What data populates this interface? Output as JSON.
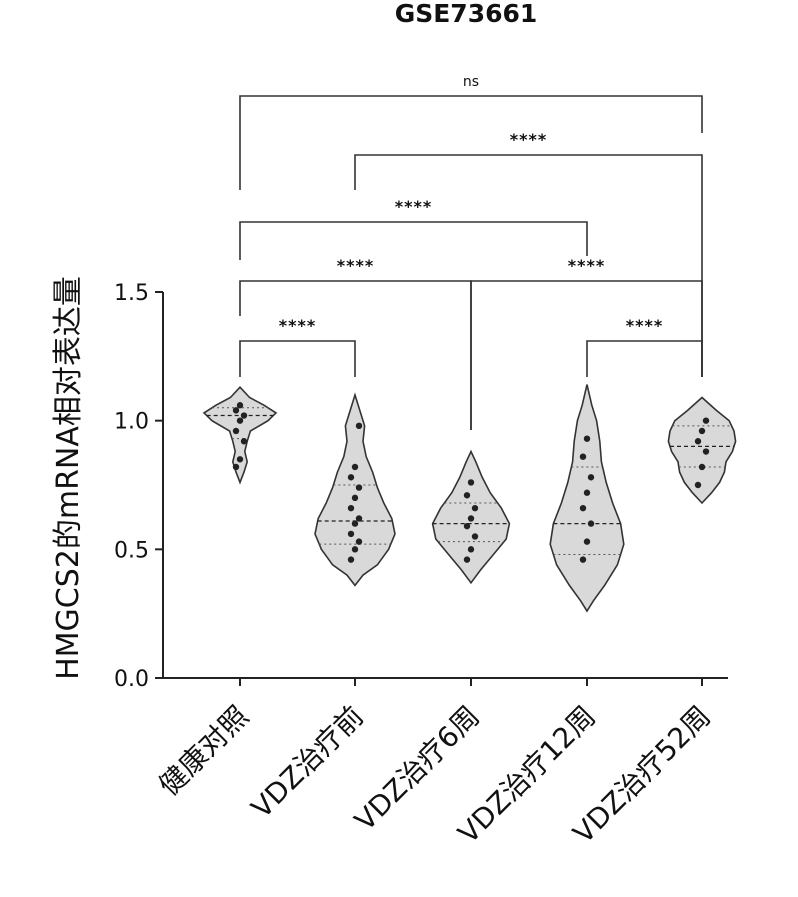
{
  "chart_data": {
    "type": "violin",
    "title": "GSE73661",
    "ylabel": "HMGCS2的mRNA相对表达量",
    "xlabel": "",
    "ylim": [
      0,
      1.5
    ],
    "yticks": [
      "0.0",
      "0.5",
      "1.0",
      "1.5"
    ],
    "categories": [
      "健康对照",
      "VDZ治疗前",
      "VDZ治疗6周",
      "VDZ治疗12周",
      "VDZ治疗52周"
    ],
    "fill_color": "#d9d9d9",
    "series": [
      {
        "category": "健康对照",
        "min": 0.76,
        "max": 1.13,
        "median": 1.02,
        "q1": 0.93,
        "q3": 1.05,
        "profile": [
          [
            0.76,
            0.0
          ],
          [
            0.8,
            0.05
          ],
          [
            0.84,
            0.09
          ],
          [
            0.88,
            0.06
          ],
          [
            0.92,
            0.09
          ],
          [
            0.96,
            0.13
          ],
          [
            1.0,
            0.35
          ],
          [
            1.03,
            0.45
          ],
          [
            1.06,
            0.3
          ],
          [
            1.09,
            0.12
          ],
          [
            1.13,
            0.0
          ]
        ],
        "points": [
          0.82,
          0.85,
          0.92,
          0.96,
          1.0,
          1.02,
          1.04,
          1.06
        ]
      },
      {
        "category": "VDZ治疗前",
        "min": 0.36,
        "max": 1.1,
        "median": 0.61,
        "q1": 0.52,
        "q3": 0.75,
        "profile": [
          [
            0.36,
            0.0
          ],
          [
            0.4,
            0.1
          ],
          [
            0.44,
            0.28
          ],
          [
            0.5,
            0.42
          ],
          [
            0.56,
            0.5
          ],
          [
            0.62,
            0.46
          ],
          [
            0.68,
            0.36
          ],
          [
            0.74,
            0.28
          ],
          [
            0.8,
            0.22
          ],
          [
            0.86,
            0.14
          ],
          [
            0.92,
            0.1
          ],
          [
            0.98,
            0.12
          ],
          [
            1.04,
            0.06
          ],
          [
            1.1,
            0.0
          ]
        ],
        "points": [
          0.46,
          0.5,
          0.53,
          0.56,
          0.6,
          0.62,
          0.66,
          0.7,
          0.74,
          0.78,
          0.82,
          0.98
        ]
      },
      {
        "category": "VDZ治疗6周",
        "min": 0.37,
        "max": 0.88,
        "median": 0.6,
        "q1": 0.53,
        "q3": 0.68,
        "profile": [
          [
            0.37,
            0.0
          ],
          [
            0.42,
            0.12
          ],
          [
            0.48,
            0.28
          ],
          [
            0.54,
            0.44
          ],
          [
            0.6,
            0.48
          ],
          [
            0.66,
            0.38
          ],
          [
            0.72,
            0.24
          ],
          [
            0.78,
            0.14
          ],
          [
            0.84,
            0.06
          ],
          [
            0.88,
            0.0
          ]
        ],
        "points": [
          0.46,
          0.5,
          0.55,
          0.59,
          0.62,
          0.66,
          0.71,
          0.76
        ]
      },
      {
        "category": "VDZ治疗12周",
        "min": 0.26,
        "max": 1.14,
        "median": 0.6,
        "q1": 0.48,
        "q3": 0.82,
        "profile": [
          [
            0.26,
            0.0
          ],
          [
            0.3,
            0.08
          ],
          [
            0.36,
            0.22
          ],
          [
            0.44,
            0.38
          ],
          [
            0.52,
            0.46
          ],
          [
            0.6,
            0.42
          ],
          [
            0.68,
            0.32
          ],
          [
            0.76,
            0.24
          ],
          [
            0.84,
            0.18
          ],
          [
            0.92,
            0.16
          ],
          [
            1.0,
            0.12
          ],
          [
            1.06,
            0.06
          ],
          [
            1.14,
            0.0
          ]
        ],
        "points": [
          0.46,
          0.53,
          0.6,
          0.66,
          0.72,
          0.78,
          0.86,
          0.93
        ]
      },
      {
        "category": "VDZ治疗52周",
        "min": 0.68,
        "max": 1.09,
        "median": 0.9,
        "q1": 0.82,
        "q3": 0.98,
        "profile": [
          [
            0.68,
            0.0
          ],
          [
            0.72,
            0.12
          ],
          [
            0.76,
            0.22
          ],
          [
            0.8,
            0.28
          ],
          [
            0.84,
            0.3
          ],
          [
            0.88,
            0.38
          ],
          [
            0.92,
            0.42
          ],
          [
            0.96,
            0.4
          ],
          [
            1.0,
            0.34
          ],
          [
            1.04,
            0.18
          ],
          [
            1.09,
            0.0
          ]
        ],
        "points": [
          0.75,
          0.82,
          0.88,
          0.92,
          0.96,
          1.0
        ]
      }
    ],
    "comparisons": [
      {
        "from": "健康对照",
        "to": "VDZ治疗前",
        "label": "****"
      },
      {
        "from": "VDZ治疗前",
        "to": "VDZ治疗52周",
        "label": "****"
      },
      {
        "from": "健康对照",
        "to": "VDZ治疗6周",
        "label": "****"
      },
      {
        "from": "健康对照",
        "to": "VDZ治疗12周",
        "label": "****"
      },
      {
        "from": "VDZ治疗6周",
        "to": "VDZ治疗52周",
        "label": "****"
      },
      {
        "from": "VDZ治疗12周",
        "to": "VDZ治疗52周",
        "label": "****"
      },
      {
        "from": "健康对照",
        "to": "VDZ治疗52周",
        "label": "ns"
      }
    ]
  }
}
